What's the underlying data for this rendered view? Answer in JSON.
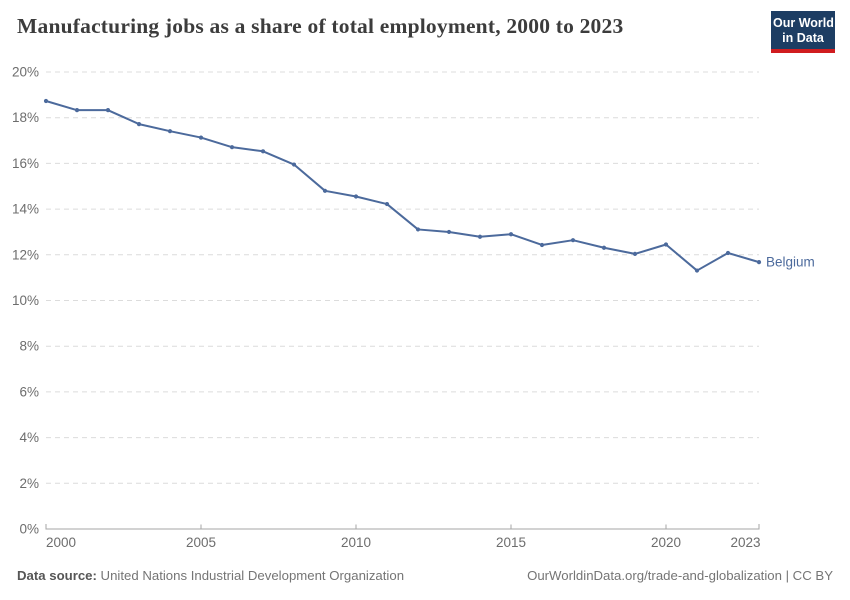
{
  "header": {
    "title": "Manufacturing jobs as a share of total employment, 2000 to 2023",
    "logo": {
      "line1": "Our World",
      "line2": "in Data"
    }
  },
  "chart_data": {
    "type": "line",
    "title": "Manufacturing jobs as a share of total employment, 2000 to 2023",
    "xlabel": "",
    "ylabel": "",
    "xlim": [
      2000,
      2023
    ],
    "ylim": [
      0,
      20
    ],
    "grid": "horizontal-dashed",
    "legend_position": "end-of-line-label",
    "x": [
      2000,
      2001,
      2002,
      2003,
      2004,
      2005,
      2006,
      2007,
      2008,
      2009,
      2010,
      2011,
      2012,
      2013,
      2014,
      2015,
      2016,
      2017,
      2018,
      2019,
      2020,
      2021,
      2022,
      2023
    ],
    "series": [
      {
        "name": "Belgium",
        "color": "#4c6a9c",
        "values": [
          18.73,
          18.33,
          18.33,
          17.72,
          17.41,
          17.13,
          16.71,
          16.53,
          15.95,
          14.8,
          14.55,
          14.22,
          13.11,
          13.0,
          12.79,
          12.9,
          12.43,
          12.64,
          12.31,
          12.04,
          12.45,
          11.31,
          12.08,
          11.68
        ]
      }
    ],
    "x_ticks": [
      {
        "v": 2000,
        "label": "2000",
        "anchor": "start"
      },
      {
        "v": 2005,
        "label": "2005",
        "anchor": "middle"
      },
      {
        "v": 2010,
        "label": "2010",
        "anchor": "middle"
      },
      {
        "v": 2015,
        "label": "2015",
        "anchor": "middle"
      },
      {
        "v": 2020,
        "label": "2020",
        "anchor": "middle"
      },
      {
        "v": 2023,
        "label": "2023",
        "anchor": "end"
      }
    ],
    "y_ticks": [
      {
        "v": 0,
        "label": "0%"
      },
      {
        "v": 2,
        "label": "2%"
      },
      {
        "v": 4,
        "label": "4%"
      },
      {
        "v": 6,
        "label": "6%"
      },
      {
        "v": 8,
        "label": "8%"
      },
      {
        "v": 10,
        "label": "10%"
      },
      {
        "v": 12,
        "label": "12%"
      },
      {
        "v": 14,
        "label": "14%"
      },
      {
        "v": 16,
        "label": "16%"
      },
      {
        "v": 18,
        "label": "18%"
      },
      {
        "v": 20,
        "label": "20%"
      }
    ]
  },
  "colors": {
    "line": "#4c6a9c",
    "grid": "#dcdcdc",
    "axis": "#a5a5a5",
    "tick_text": "#6d6d6d",
    "title_text": "#3c3c3c",
    "logo_bg": "#1d3d63",
    "logo_red": "#d01c1f",
    "footer_text": "#757575"
  },
  "footer": {
    "source_label": "Data source:",
    "source_value": " United Nations Industrial Development Organization",
    "credit": "OurWorldinData.org/trade-and-globalization | CC BY"
  }
}
